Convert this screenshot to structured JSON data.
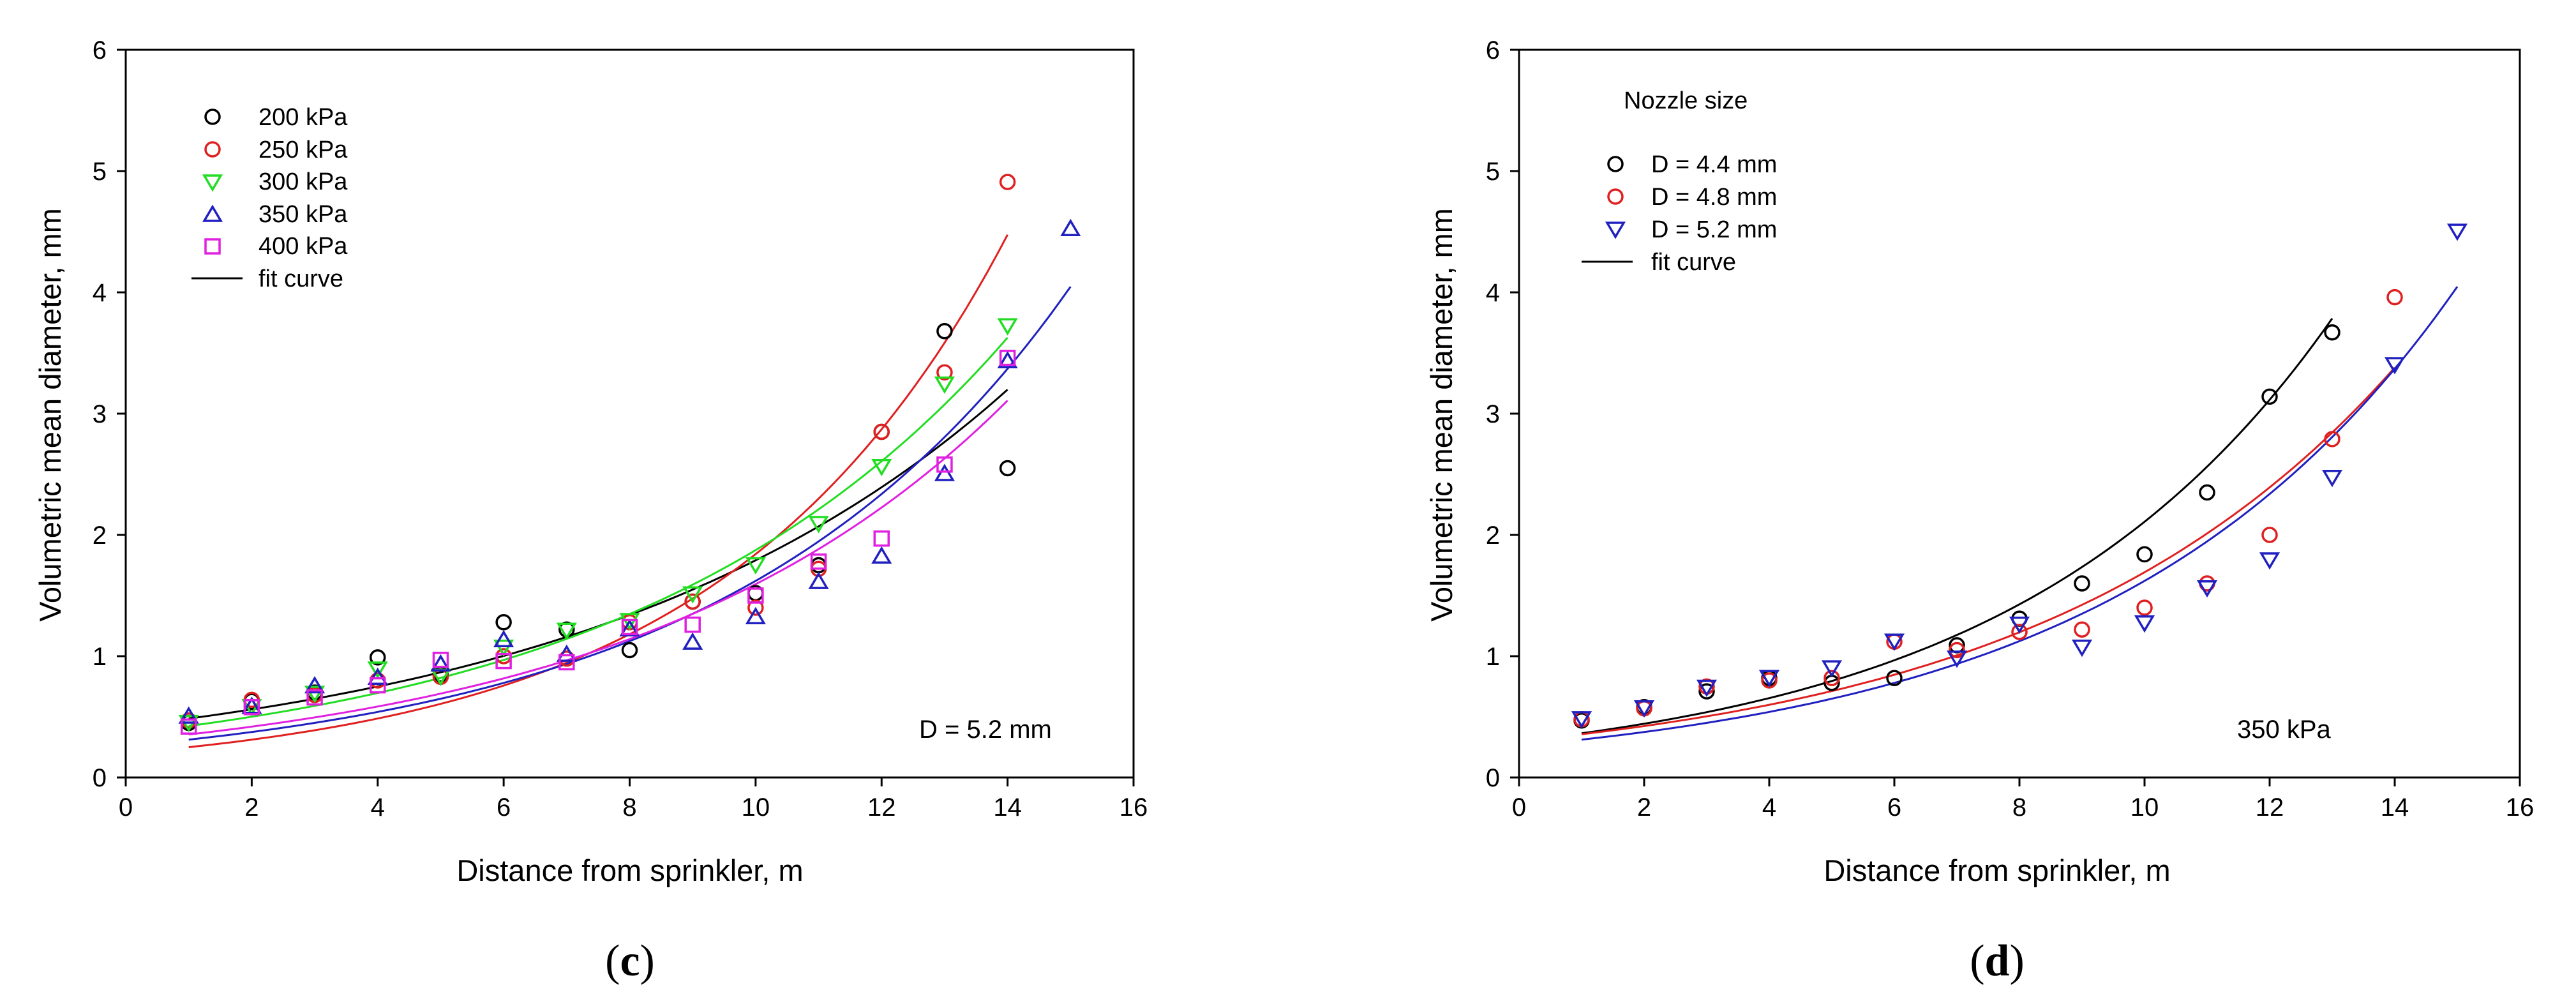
{
  "chart_data": [
    {
      "type": "scatter",
      "panel_label": "c",
      "xlabel": "Distance from sprinkler, m",
      "ylabel": "Volumetric mean diameter, mm",
      "xlim": [
        0,
        16
      ],
      "ylim": [
        0,
        6
      ],
      "xticks": [
        0,
        2,
        4,
        6,
        8,
        10,
        12,
        14,
        16
      ],
      "yticks": [
        0,
        1,
        2,
        3,
        4,
        5,
        6
      ],
      "grid": false,
      "legend_position": "top-left",
      "annotation": "D = 5.2 mm",
      "fit_label": "fit curve",
      "fit_color": "#000000",
      "series": [
        {
          "name": "200 kPa",
          "marker": "circle",
          "color": "#000000",
          "x": [
            1,
            2,
            3,
            4,
            5,
            6,
            7,
            8,
            9,
            10,
            11,
            12,
            13,
            14
          ],
          "y": [
            0.45,
            0.63,
            0.7,
            0.99,
            0.85,
            1.28,
            1.22,
            1.05,
            1.45,
            1.52,
            1.75,
            2.85,
            3.68,
            2.55
          ],
          "fit": {
            "a": 0.42,
            "b": 0.145,
            "xmax": 14
          }
        },
        {
          "name": "250 kPa",
          "marker": "circle",
          "color": "#e02020",
          "x": [
            1,
            2,
            3,
            4,
            5,
            6,
            7,
            8,
            9,
            10,
            11,
            12,
            13,
            14
          ],
          "y": [
            0.47,
            0.64,
            0.68,
            0.8,
            0.83,
            1.0,
            0.98,
            1.28,
            1.45,
            1.4,
            1.72,
            2.85,
            3.34,
            4.91
          ],
          "fit": {
            "a": 0.2,
            "b": 0.222,
            "xmax": 14
          }
        },
        {
          "name": "300 kPa",
          "marker": "triangle-down",
          "color": "#22dd22",
          "x": [
            1,
            2,
            3,
            4,
            5,
            6,
            7,
            8,
            9,
            10,
            11,
            12,
            13,
            14
          ],
          "y": [
            0.46,
            0.59,
            0.7,
            0.9,
            0.84,
            1.08,
            1.22,
            1.3,
            1.52,
            1.76,
            2.1,
            2.57,
            3.25,
            3.73
          ],
          "fit": {
            "a": 0.36,
            "b": 0.165,
            "xmax": 14
          }
        },
        {
          "name": "350 kPa",
          "marker": "triangle-up",
          "color": "#2020c0",
          "x": [
            1,
            2,
            3,
            4,
            5,
            6,
            7,
            8,
            9,
            10,
            11,
            12,
            13,
            14,
            15
          ],
          "y": [
            0.5,
            0.58,
            0.75,
            0.82,
            0.93,
            1.13,
            1.01,
            1.22,
            1.11,
            1.32,
            1.61,
            1.82,
            2.5,
            3.43,
            4.52
          ],
          "fit": {
            "a": 0.26,
            "b": 0.183,
            "xmax": 15
          }
        },
        {
          "name": "400 kPa",
          "marker": "square",
          "color": "#e020e0",
          "x": [
            1,
            2,
            3,
            4,
            5,
            6,
            7,
            8,
            9,
            10,
            11,
            12,
            13,
            14
          ],
          "y": [
            0.42,
            0.58,
            0.66,
            0.76,
            0.97,
            0.96,
            0.95,
            1.24,
            1.26,
            1.5,
            1.78,
            1.97,
            2.58,
            3.46
          ],
          "fit": {
            "a": 0.3,
            "b": 0.167,
            "xmax": 14
          }
        }
      ]
    },
    {
      "type": "scatter",
      "panel_label": "d",
      "xlabel": "Distance from sprinkler, m",
      "ylabel": "Volumetric mean diameter, mm",
      "xlim": [
        0,
        16
      ],
      "ylim": [
        0,
        6
      ],
      "xticks": [
        0,
        2,
        4,
        6,
        8,
        10,
        12,
        14,
        16
      ],
      "yticks": [
        0,
        1,
        2,
        3,
        4,
        5,
        6
      ],
      "grid": false,
      "legend_position": "top-left",
      "legend_title": "Nozzle size",
      "annotation": "350 kPa",
      "fit_label": "fit curve",
      "fit_color": "#000000",
      "series": [
        {
          "name": "D = 4.4 mm",
          "marker": "circle",
          "color": "#000000",
          "x": [
            1,
            2,
            3,
            4,
            5,
            6,
            7,
            8,
            9,
            10,
            11,
            12,
            13
          ],
          "y": [
            0.47,
            0.58,
            0.71,
            0.82,
            0.78,
            0.82,
            1.09,
            1.31,
            1.6,
            1.84,
            2.35,
            3.14,
            3.67
          ],
          "fit": {
            "a": 0.3,
            "b": 0.195,
            "xmax": 13
          }
        },
        {
          "name": "D = 4.8 mm",
          "marker": "circle",
          "color": "#e02020",
          "x": [
            1,
            2,
            3,
            4,
            5,
            6,
            7,
            8,
            9,
            10,
            11,
            12,
            13,
            14
          ],
          "y": [
            0.48,
            0.57,
            0.75,
            0.8,
            0.82,
            1.12,
            1.05,
            1.2,
            1.22,
            1.4,
            1.6,
            2.0,
            2.79,
            3.96
          ],
          "fit": {
            "a": 0.3,
            "b": 0.173,
            "xmax": 14
          }
        },
        {
          "name": "D = 5.2 mm",
          "marker": "triangle-down",
          "color": "#2020c0",
          "x": [
            1,
            2,
            3,
            4,
            5,
            6,
            7,
            8,
            9,
            10,
            11,
            12,
            13,
            14,
            15
          ],
          "y": [
            0.49,
            0.58,
            0.75,
            0.83,
            0.91,
            1.13,
            0.99,
            1.27,
            1.08,
            1.28,
            1.57,
            1.8,
            2.48,
            3.41,
            4.51
          ],
          "fit": {
            "a": 0.26,
            "b": 0.183,
            "xmax": 15
          }
        }
      ]
    }
  ]
}
